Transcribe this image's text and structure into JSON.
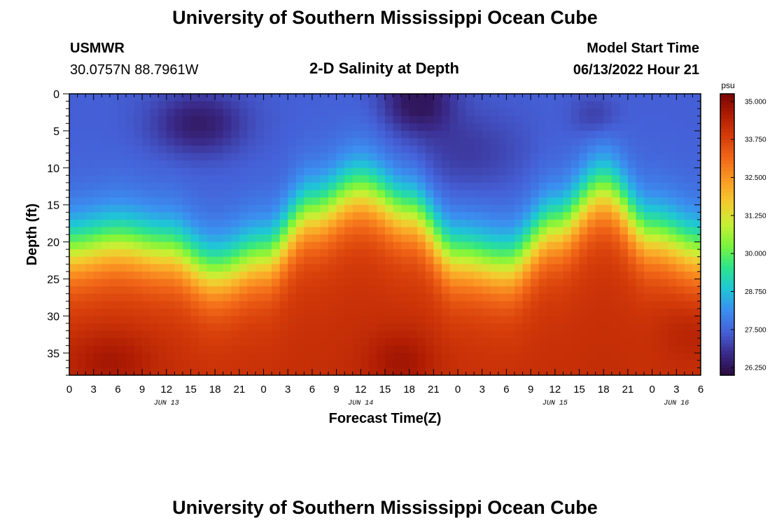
{
  "header": {
    "title": "University of Southern Mississippi Ocean Cube",
    "station": "USMWR",
    "coords": "30.0757N  88.7961W",
    "subtitle": "2-D Salinity at Depth",
    "model_label": "Model Start Time",
    "model_time": "06/13/2022 Hour 21"
  },
  "footer": {
    "title": "University of Southern Mississippi Ocean Cube"
  },
  "colorbar": {
    "unit": "psu",
    "min": 26.0,
    "max": 35.25,
    "ticks": [
      "35.000",
      "33.750",
      "32.500",
      "31.250",
      "30.000",
      "28.750",
      "27.500",
      "26.250"
    ],
    "colors": [
      "#2b0a3d",
      "#3a2a8a",
      "#4561d8",
      "#3b8ff0",
      "#1fc6d6",
      "#2ee58a",
      "#7df53b",
      "#c8ef34",
      "#f5c92f",
      "#fb9a24",
      "#f26818",
      "#d63d0a",
      "#b01d03",
      "#7a0403"
    ]
  },
  "chart_data": {
    "type": "heatmap",
    "title": "2-D Salinity at Depth",
    "xlabel": "Forecast Time(Z)",
    "ylabel": "Depth (ft)",
    "x_tick_labels": [
      "0",
      "3",
      "6",
      "9",
      "12",
      "15",
      "18",
      "21",
      "0",
      "3",
      "6",
      "9",
      "12",
      "15",
      "18",
      "21",
      "0",
      "3",
      "6",
      "9",
      "12",
      "15",
      "18",
      "21",
      "0",
      "3",
      "6"
    ],
    "x_range_hours": [
      0,
      78
    ],
    "date_labels": [
      {
        "label": "JUN 13",
        "hour": 12
      },
      {
        "label": "JUN 14",
        "hour": 36
      },
      {
        "label": "JUN 15",
        "hour": 60
      },
      {
        "label": "JUN 16",
        "hour": 75
      }
    ],
    "y_ticks": [
      0,
      5,
      10,
      15,
      20,
      25,
      30,
      35
    ],
    "ylim": [
      0,
      38
    ],
    "z_unit": "psu",
    "zlim": [
      26.0,
      35.25
    ],
    "halocline_depth_ft": [
      {
        "hour": 0,
        "depth": 21
      },
      {
        "hour": 6,
        "depth": 20
      },
      {
        "hour": 12,
        "depth": 21
      },
      {
        "hour": 18,
        "depth": 24
      },
      {
        "hour": 24,
        "depth": 22
      },
      {
        "hour": 30,
        "depth": 16
      },
      {
        "hour": 36,
        "depth": 13
      },
      {
        "hour": 42,
        "depth": 16
      },
      {
        "hour": 48,
        "depth": 22
      },
      {
        "hour": 54,
        "depth": 23
      },
      {
        "hour": 60,
        "depth": 18
      },
      {
        "hour": 66,
        "depth": 13
      },
      {
        "hour": 72,
        "depth": 19
      },
      {
        "hour": 78,
        "depth": 21
      }
    ],
    "surface_min_salinity_psu": 26.3,
    "bottom_max_salinity_psu": 35.1
  }
}
